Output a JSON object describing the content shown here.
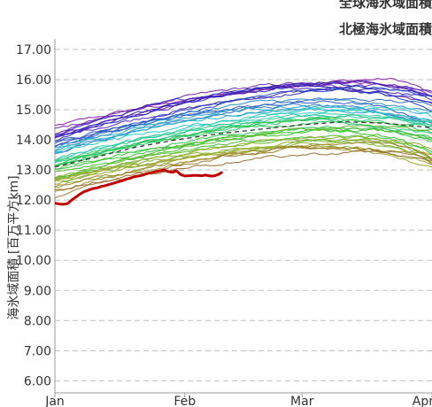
{
  "chart_data": {
    "type": "line",
    "title": "北極海氷域面積",
    "partial_title_above": "全球海氷域面積",
    "ylabel": "海氷域面積 [百万平方km]",
    "xlabel": "",
    "ylim": [
      5.6,
      17.35
    ],
    "y_ticks": [
      "6.00",
      "7.00",
      "8.00",
      "9.00",
      "10.00",
      "11.00",
      "12.00",
      "13.00",
      "14.00",
      "15.00",
      "16.00",
      "17.00"
    ],
    "x_ticks": [
      "Jan",
      "Feb",
      "Mar",
      "Apr"
    ],
    "x_tick_days": [
      1,
      32,
      60,
      91
    ],
    "xlim": [
      1,
      91
    ],
    "grid": "horizontal dashed",
    "background_years": {
      "count": 44,
      "color_order": "purple → blue → cyan → green → yellow-olive → orange",
      "start_range": [
        12.2,
        14.4
      ],
      "peak_range": [
        13.6,
        16.1
      ],
      "end_range": [
        12.9,
        15.9
      ]
    },
    "mean_series": {
      "name": "",
      "style": "dashed",
      "color": "#333333",
      "x": [
        1,
        10,
        20,
        30,
        40,
        50,
        60,
        70,
        80,
        91
      ],
      "y": [
        13.1,
        13.4,
        13.75,
        14.0,
        14.2,
        14.35,
        14.5,
        14.6,
        14.55,
        14.4
      ]
    },
    "current_series": {
      "name": "",
      "color": "#c00000",
      "x": [
        1,
        2,
        3,
        4,
        5,
        6,
        7,
        8,
        9,
        10,
        11,
        12,
        13,
        14,
        15,
        16,
        17,
        18,
        19,
        20,
        21,
        22,
        23,
        24,
        25,
        26,
        27,
        28,
        29,
        30,
        31,
        32,
        33,
        34,
        35,
        36,
        37,
        38,
        39,
        40,
        41
      ],
      "y": [
        11.9,
        11.87,
        11.86,
        11.88,
        12.0,
        12.1,
        12.2,
        12.28,
        12.33,
        12.38,
        12.4,
        12.45,
        12.48,
        12.52,
        12.56,
        12.6,
        12.64,
        12.69,
        12.73,
        12.78,
        12.8,
        12.83,
        12.88,
        12.91,
        12.94,
        12.97,
        13.0,
        12.95,
        12.92,
        12.97,
        12.85,
        12.8,
        12.81,
        12.82,
        12.82,
        12.81,
        12.83,
        12.8,
        12.8,
        12.85,
        12.93
      ]
    }
  }
}
